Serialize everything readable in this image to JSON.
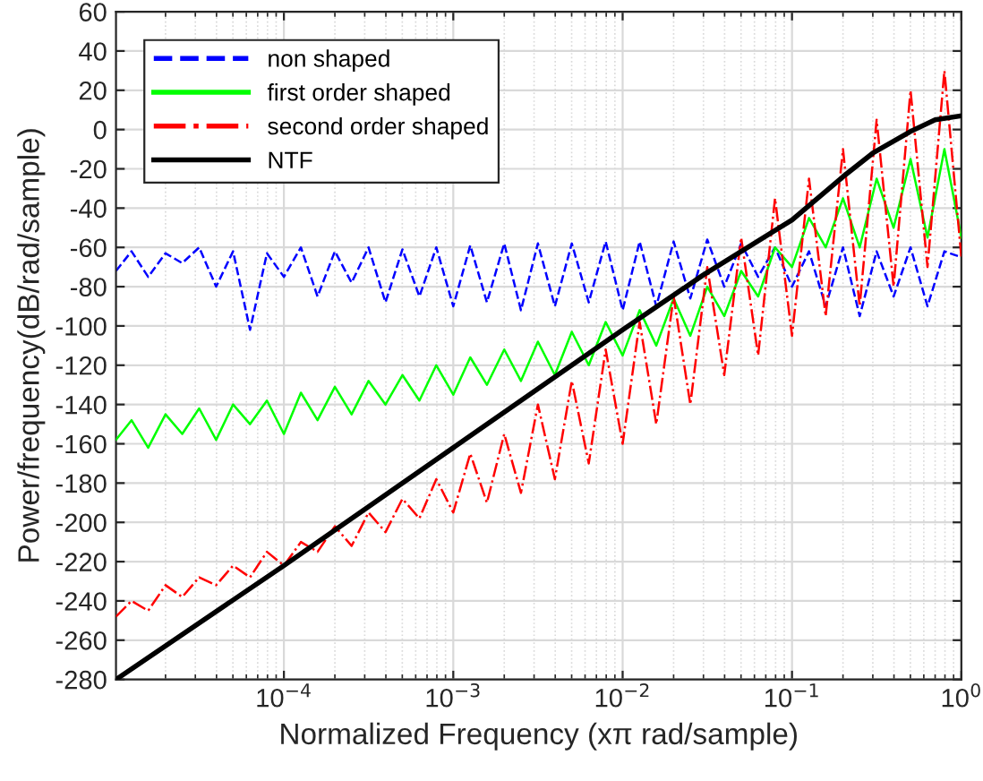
{
  "chart_data": {
    "type": "line",
    "xlabel": "Normalized Frequency (xπ rad/sample)",
    "ylabel": "Power/frequency(dB/rad/sample)",
    "log": "x",
    "xlim": [
      1.02e-05,
      1
    ],
    "xticks": [
      {
        "value": 0.0001,
        "label": "10$^{−4}$"
      },
      {
        "value": 0.001,
        "label": "10$^{−3}$"
      },
      {
        "value": 0.01,
        "label": "10$^{−2}$"
      },
      {
        "value": 0.1,
        "label": "10$^{−1}$"
      },
      {
        "value": 1,
        "label": "10$^{0}$"
      }
    ],
    "ylim": [
      -280,
      60
    ],
    "yticks": [
      -280,
      -260,
      -240,
      -220,
      -200,
      -180,
      -160,
      -140,
      -120,
      -100,
      -80,
      -60,
      -40,
      -20,
      0,
      20,
      40,
      60
    ],
    "grid": true,
    "legend": "top left",
    "x": [
      1.02e-05,
      1.26e-05,
      1.58e-05,
      2e-05,
      2.51e-05,
      3.16e-05,
      3.98e-05,
      5.01e-05,
      6.31e-05,
      7.94e-05,
      0.0001,
      0.000126,
      0.000158,
      0.0002,
      0.000251,
      0.000316,
      0.000398,
      0.000501,
      0.000631,
      0.000794,
      0.001,
      0.00126,
      0.00158,
      0.002,
      0.00251,
      0.00316,
      0.00398,
      0.00501,
      0.00631,
      0.00794,
      0.01,
      0.0126,
      0.0158,
      0.02,
      0.0251,
      0.0316,
      0.0398,
      0.0501,
      0.0631,
      0.0794,
      0.1,
      0.126,
      0.158,
      0.2,
      0.251,
      0.316,
      0.398,
      0.501,
      0.631,
      0.794,
      1
    ],
    "series": [
      {
        "name": "non shaped",
        "color": "#0000ff",
        "line_style": "dashed",
        "values": [
          -72,
          -62,
          -75,
          -63,
          -68,
          -60,
          -80,
          -62,
          -102,
          -63,
          -75,
          -60,
          -85,
          -62,
          -78,
          -60,
          -88,
          -61,
          -85,
          -60,
          -90,
          -59,
          -88,
          -58,
          -92,
          -58,
          -90,
          -58,
          -88,
          -57,
          -92,
          -57,
          -90,
          -57,
          -86,
          -56,
          -80,
          -58,
          -75,
          -60,
          -80,
          -62,
          -90,
          -60,
          -95,
          -62,
          -85,
          -60,
          -90,
          -62,
          -65
        ]
      },
      {
        "name": "first order shaped",
        "color": "#00ff00",
        "line_style": "solid",
        "values": [
          -158,
          -148,
          -162,
          -145,
          -155,
          -142,
          -158,
          -140,
          -150,
          -138,
          -155,
          -134,
          -148,
          -131,
          -145,
          -128,
          -140,
          -125,
          -138,
          -120,
          -135,
          -116,
          -130,
          -112,
          -128,
          -108,
          -125,
          -103,
          -120,
          -98,
          -115,
          -92,
          -110,
          -86,
          -105,
          -80,
          -95,
          -72,
          -85,
          -60,
          -70,
          -45,
          -60,
          -35,
          -60,
          -25,
          -50,
          -15,
          -55,
          -10,
          -55
        ]
      },
      {
        "name": "second order shaped",
        "color": "#ff0000",
        "line_style": "dashdot",
        "values": [
          -248,
          -240,
          -245,
          -232,
          -238,
          -228,
          -232,
          -222,
          -228,
          -215,
          -222,
          -210,
          -215,
          -202,
          -212,
          -195,
          -205,
          -188,
          -198,
          -178,
          -195,
          -165,
          -190,
          -155,
          -185,
          -140,
          -178,
          -128,
          -170,
          -112,
          -160,
          -98,
          -150,
          -85,
          -140,
          -70,
          -125,
          -55,
          -115,
          -35,
          -105,
          -25,
          -95,
          -10,
          -90,
          5,
          -80,
          20,
          -70,
          30,
          -65
        ]
      },
      {
        "name": "NTF",
        "color": "#000000",
        "line_style": "solid",
        "x": [
          1.02e-05,
          0.0001,
          0.001,
          0.01,
          0.03,
          0.1,
          0.2,
          0.3,
          0.5,
          0.7,
          1
        ],
        "values": [
          -280,
          -222,
          -162,
          -102,
          -74,
          -46,
          -24,
          -12,
          -1,
          5,
          7
        ]
      }
    ]
  }
}
